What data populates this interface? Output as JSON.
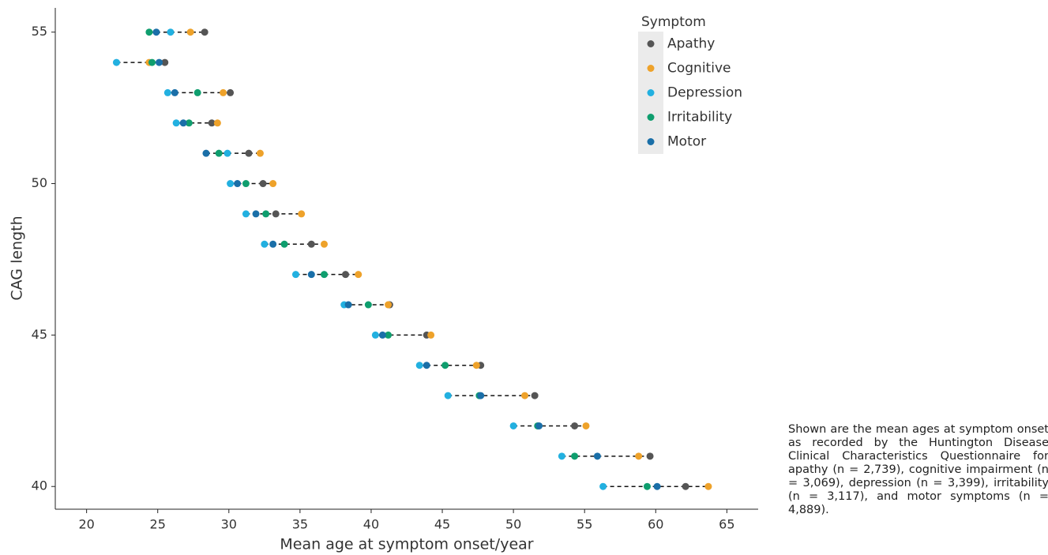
{
  "chart_data": {
    "type": "scatter",
    "xlabel": "Mean age at symptom onset/year",
    "ylabel": "CAG length",
    "legend_title": "Symptom",
    "legend_position": "top-right",
    "y": [
      55,
      54,
      53,
      52,
      51,
      50,
      49,
      48,
      47,
      46,
      45,
      44,
      43,
      42,
      41,
      40
    ],
    "series": [
      {
        "name": "Apathy",
        "color": "#555555",
        "x": [
          28.3,
          25.5,
          30.1,
          28.8,
          31.4,
          32.4,
          33.3,
          35.8,
          38.2,
          41.3,
          43.9,
          47.7,
          51.5,
          54.3,
          59.6,
          62.1
        ]
      },
      {
        "name": "Cognitive",
        "color": "#eea22a",
        "x": [
          27.3,
          24.4,
          29.6,
          29.2,
          32.2,
          33.1,
          35.1,
          36.7,
          39.1,
          41.2,
          44.2,
          47.4,
          50.8,
          55.1,
          58.8,
          63.7
        ]
      },
      {
        "name": "Depression",
        "color": "#22b0e0",
        "x": [
          25.9,
          22.1,
          25.7,
          26.3,
          29.9,
          30.1,
          31.2,
          32.5,
          34.7,
          38.1,
          40.3,
          43.4,
          45.4,
          50.0,
          53.4,
          56.3
        ]
      },
      {
        "name": "Irritability",
        "color": "#0f9e6e",
        "x": [
          24.4,
          24.6,
          27.8,
          27.2,
          29.3,
          31.2,
          32.6,
          33.9,
          36.7,
          39.8,
          41.2,
          45.2,
          47.6,
          51.7,
          54.3,
          59.4
        ]
      },
      {
        "name": "Motor",
        "color": "#1a6fa8",
        "x": [
          24.9,
          25.1,
          26.2,
          26.8,
          28.4,
          30.6,
          31.9,
          33.1,
          35.8,
          38.4,
          40.8,
          43.9,
          47.7,
          51.8,
          55.9,
          60.1
        ]
      }
    ],
    "xlim": [
      17.8,
      67.2
    ],
    "xticks": [
      20,
      25,
      30,
      35,
      40,
      45,
      50,
      55,
      60,
      65
    ],
    "ylim": [
      39.25,
      55.8
    ],
    "yticks": [
      40,
      45,
      50,
      55
    ],
    "grid": false
  },
  "caption": "Shown are the mean ages at symptom onset as recorded by the Huntington Disease Clinical Characteristics Questionnaire for apathy (n = 2,739), cognitive impairment (n = 3,069), depression (n = 3,399), irritability (n = 3,117), and motor symptoms (n = 4,889)."
}
